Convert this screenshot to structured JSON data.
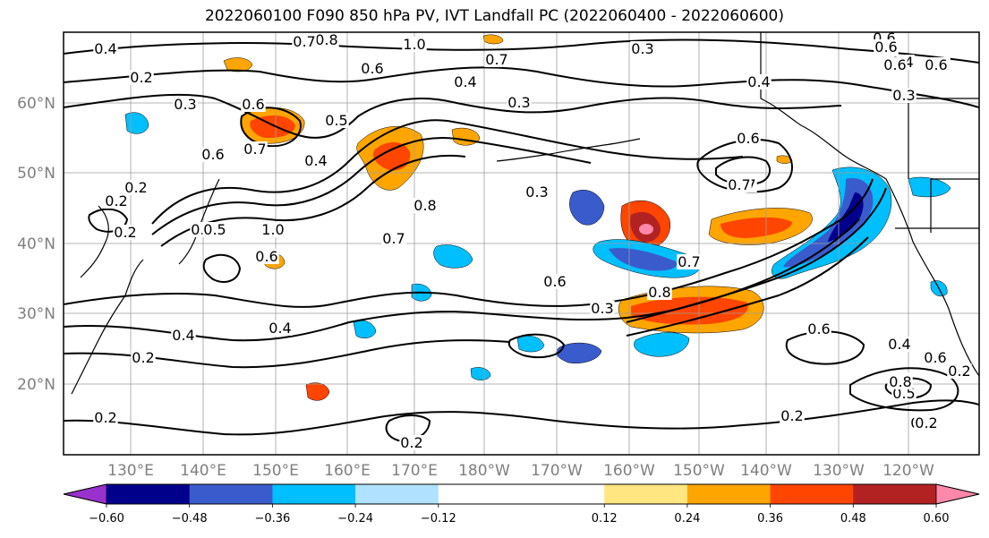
{
  "title": "2022060100 F090 850 hPa PV, IVT Landfall PC (2022060400 - 2022060600)",
  "lat_labels": [
    "60°N",
    "50°N",
    "40°N",
    "30°N",
    "20°N"
  ],
  "lon_labels": [
    "130°E",
    "140°E",
    "150°E",
    "160°E",
    "170°E",
    "180°W",
    "170°W",
    "160°W",
    "150°W",
    "140°W",
    "130°W",
    "120°W"
  ],
  "contour_labels": [
    "0.4",
    "1.0",
    "0.8",
    "0.2",
    "0.6",
    "0.3",
    "0.7",
    "0.4",
    "0.3",
    "0.6",
    "0.6",
    "0.5",
    "0.4",
    "0.3",
    "0.7",
    "0.6",
    "0.7",
    "0.4",
    "0.8",
    "0.5",
    "1.0",
    "0.8",
    "0.7",
    "0.6",
    "0.6",
    "0.6",
    "0.4",
    "0.8",
    "0.3",
    "0.7",
    "0.6",
    "0.4",
    "0.5",
    "0.2",
    "0.2",
    "0.2",
    "0.3",
    "0.2",
    "0.6",
    "0.4",
    "0.6",
    "0.8",
    "0.2",
    "0.2",
    "0.2",
    "0.2",
    "0.5",
    "0.7",
    "0.6",
    "0.6",
    "0.8",
    "0.7",
    "0.4",
    "0.6",
    "0.3",
    "0.2",
    "0.2"
  ],
  "colorbar": {
    "colors": [
      "#9932cc",
      "#00008b",
      "#3a5bcc",
      "#00bfff",
      "#b0e2ff",
      "#ffffff",
      "#ffffff",
      "#ffe680",
      "#ffa500",
      "#ff4500",
      "#b22222",
      "#ff88aa"
    ],
    "tick_labels": [
      "−0.60",
      "−0.48",
      "−0.36",
      "−0.24",
      "−0.12",
      "0.12",
      "0.24",
      "0.36",
      "0.48",
      "0.60"
    ]
  },
  "map": {
    "lat_range": [
      10,
      70
    ],
    "lon_range_east": [
      120,
      248
    ],
    "field_colors": {
      "neg_strong": "#00008b",
      "neg_mid": "#3a5bcc",
      "neg_light": "#00bfff",
      "pos_light": "#ffe680",
      "pos_mid": "#ffa500",
      "pos_strong": "#ff4500",
      "pos_max": "#b22222",
      "pos_peak": "#ff88aa"
    }
  }
}
